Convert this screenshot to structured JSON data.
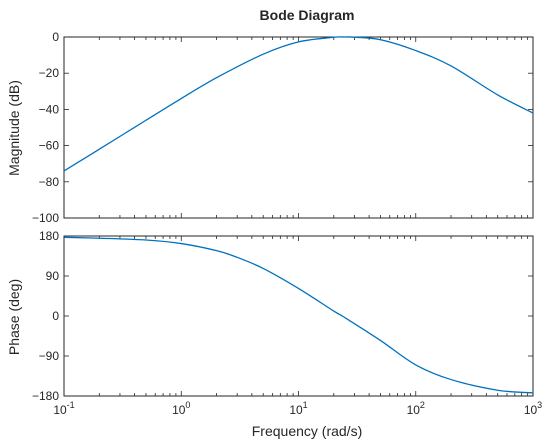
{
  "chart_data": {
    "type": "line",
    "title": "Bode Diagram",
    "xlabel": "Frequency  (rad/s)",
    "xscale": "log",
    "xlim": [
      0.1,
      1000
    ],
    "x_ticks": [
      0.1,
      1,
      10,
      100,
      1000
    ],
    "x_tick_labels": [
      {
        "base": "10",
        "exp": "-1"
      },
      {
        "base": "10",
        "exp": "0"
      },
      {
        "base": "10",
        "exp": "1"
      },
      {
        "base": "10",
        "exp": "2"
      },
      {
        "base": "10",
        "exp": "3"
      }
    ],
    "grid": false,
    "color": "#0072BD",
    "subplots": [
      {
        "ylabel": "Magnitude (dB)",
        "ylim": [
          -100,
          0
        ],
        "yticks": [
          0,
          -20,
          -40,
          -60,
          -80,
          -100
        ],
        "ytick_labels": [
          "0",
          "−20",
          "−40",
          "−60",
          "−80",
          "−100"
        ],
        "series": [
          {
            "x": [
              0.1,
              0.2,
              0.5,
              1,
              2,
              5,
              10,
              20,
              25,
              30,
              50,
              100,
              200,
              500,
              1000
            ],
            "y": [
              -74,
              -62,
              -46,
              -34,
              -22.5,
              -9.5,
              -2.7,
              -0.15,
              0,
              -0.1,
              -1.5,
              -7.5,
              -16,
              -32,
              -42
            ]
          }
        ]
      },
      {
        "ylabel": "Phase (deg)",
        "ylim": [
          -180,
          180
        ],
        "yticks": [
          180,
          90,
          0,
          -90,
          -180
        ],
        "ytick_labels": [
          "180",
          "90",
          "0",
          "−90",
          "−180"
        ],
        "series": [
          {
            "x": [
              0.1,
              0.2,
              0.5,
              1,
              2,
              3,
              5,
              10,
              20,
              25,
              50,
              100,
              200,
              500,
              1000
            ],
            "y": [
              177,
              175,
              171,
              163,
              147,
              132,
              107,
              62,
              11,
              -4,
              -55,
              -110,
              -143,
              -167,
              -173
            ]
          }
        ]
      }
    ]
  }
}
